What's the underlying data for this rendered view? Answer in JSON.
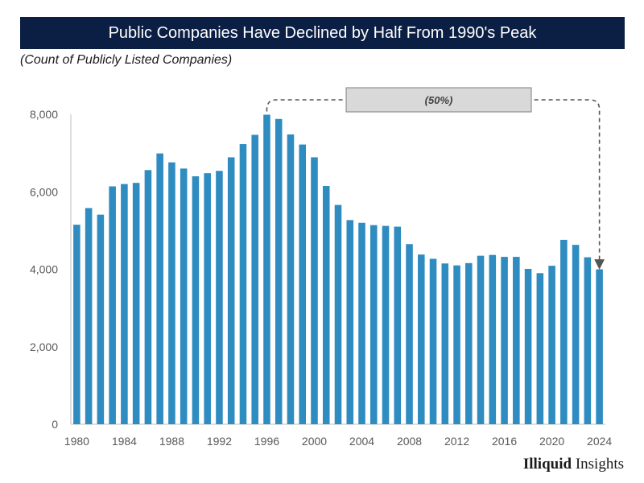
{
  "header": {
    "title": "Public Companies Have Declined by Half From 1990's Peak",
    "subtitle": "(Count of Publicly Listed Companies)"
  },
  "brand": {
    "part1": "Illiquid",
    "part2": "Insights"
  },
  "colors": {
    "banner": "#0b1f44",
    "bar": "#2e8cc0",
    "callout_fill": "#d9d9d9",
    "callout_line": "#555555"
  },
  "chart_data": {
    "type": "bar",
    "title": "Public Companies Have Declined by Half From 1990's Peak",
    "subtitle": "(Count of Publicly Listed Companies)",
    "xlabel": "",
    "ylabel": "",
    "ylim": [
      0,
      8000
    ],
    "yticks": [
      0,
      2000,
      4000,
      6000,
      8000
    ],
    "ytick_labels": [
      "0",
      "2,000",
      "4,000",
      "6,000",
      "8,000"
    ],
    "xtick_labels": [
      "1980",
      "1984",
      "1988",
      "1992",
      "1996",
      "2000",
      "2004",
      "2008",
      "2012",
      "2016",
      "2020",
      "2024"
    ],
    "grid": false,
    "categories": [
      1980,
      1981,
      1982,
      1983,
      1984,
      1985,
      1986,
      1987,
      1988,
      1989,
      1990,
      1991,
      1992,
      1993,
      1994,
      1995,
      1996,
      1997,
      1998,
      1999,
      2000,
      2001,
      2002,
      2003,
      2004,
      2005,
      2006,
      2007,
      2008,
      2009,
      2010,
      2011,
      2012,
      2013,
      2014,
      2015,
      2016,
      2017,
      2018,
      2019,
      2020,
      2021,
      2022,
      2023,
      2024
    ],
    "values": [
      5150,
      5580,
      5410,
      6140,
      6200,
      6230,
      6560,
      6990,
      6760,
      6600,
      6400,
      6480,
      6540,
      6890,
      7230,
      7470,
      7990,
      7880,
      7480,
      7220,
      6890,
      6150,
      5660,
      5270,
      5200,
      5140,
      5120,
      5100,
      4650,
      4380,
      4270,
      4150,
      4100,
      4160,
      4350,
      4370,
      4320,
      4320,
      4010,
      3900,
      4090,
      4760,
      4630,
      4310,
      4000
    ],
    "annotation": {
      "label": "(50%)",
      "from_year": 1996,
      "to_year": 2024
    }
  }
}
